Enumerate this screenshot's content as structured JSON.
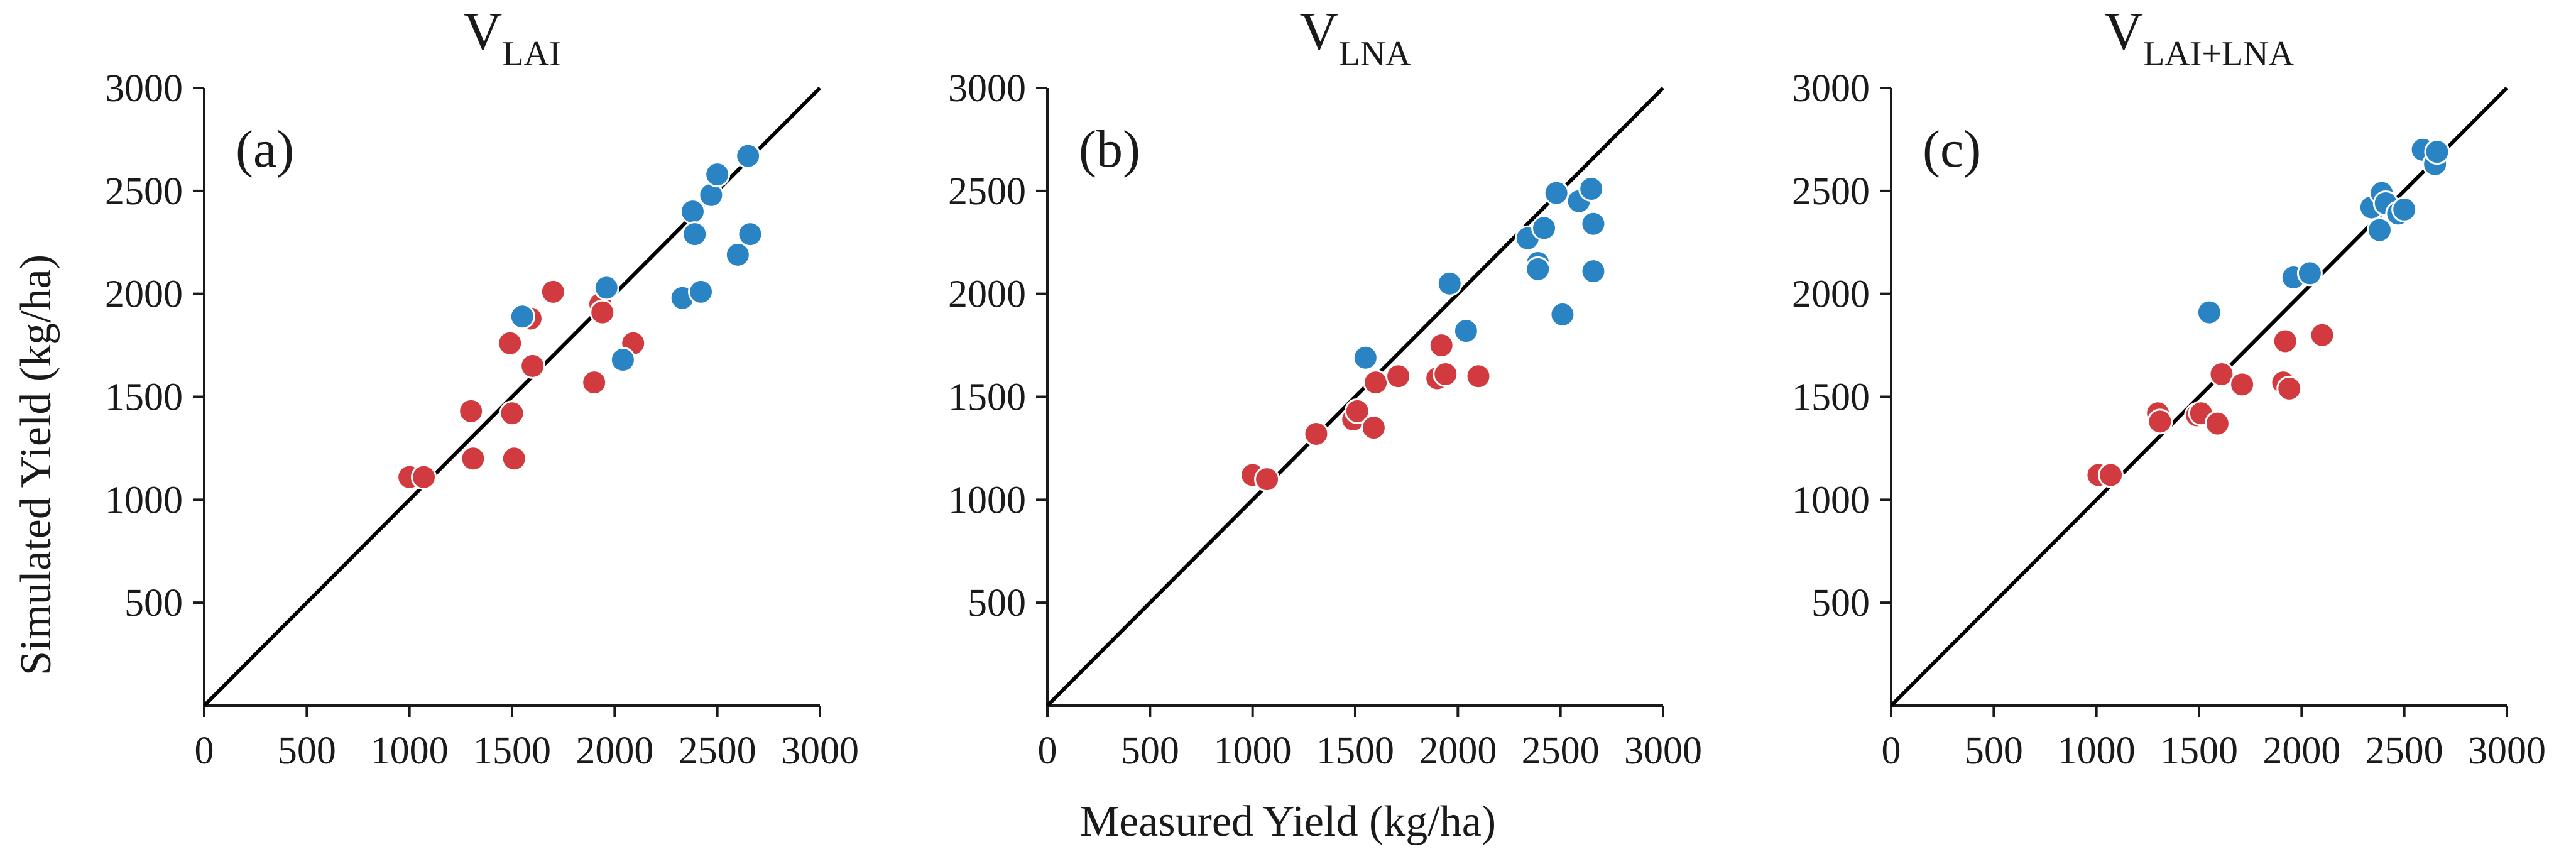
{
  "figure": {
    "xlabel": "Measured Yield (kg/ha)",
    "ylabel": "Simulated Yield (kg/ha)"
  },
  "colors": {
    "series_red": "#d13b40",
    "series_blue": "#2a84c4",
    "line": "#000000",
    "axis": "#1a1a1a"
  },
  "chart_data": [
    {
      "type": "scatter",
      "title_main": "V",
      "title_sub": "LAI",
      "panel_label": "(a)",
      "xlim": [
        0,
        3000
      ],
      "ylim": [
        0,
        3000
      ],
      "xticks": [
        0,
        500,
        1000,
        1500,
        2000,
        2500,
        3000
      ],
      "yticks": [
        500,
        1000,
        1500,
        2000,
        2500,
        3000
      ],
      "reference_line": "1:1",
      "series": [
        {
          "name": "red",
          "points": [
            [
              1000,
              1110
            ],
            [
              1070,
              1110
            ],
            [
              1300,
              1430
            ],
            [
              1310,
              1200
            ],
            [
              1490,
              1760
            ],
            [
              1500,
              1420
            ],
            [
              1510,
              1200
            ],
            [
              1590,
              1880
            ],
            [
              1600,
              1650
            ],
            [
              1700,
              2010
            ],
            [
              1900,
              1570
            ],
            [
              1930,
              1950
            ],
            [
              1940,
              1910
            ],
            [
              2090,
              1760
            ]
          ]
        },
        {
          "name": "blue",
          "points": [
            [
              1550,
              1890
            ],
            [
              1960,
              2030
            ],
            [
              2040,
              1680
            ],
            [
              2330,
              1980
            ],
            [
              2380,
              2400
            ],
            [
              2390,
              2290
            ],
            [
              2420,
              2010
            ],
            [
              2470,
              2480
            ],
            [
              2500,
              2580
            ],
            [
              2600,
              2190
            ],
            [
              2650,
              2670
            ],
            [
              2660,
              2290
            ]
          ]
        }
      ]
    },
    {
      "type": "scatter",
      "title_main": "V",
      "title_sub": "LNA",
      "panel_label": "(b)",
      "xlim": [
        0,
        3000
      ],
      "ylim": [
        0,
        3000
      ],
      "xticks": [
        0,
        500,
        1000,
        1500,
        2000,
        2500,
        3000
      ],
      "yticks": [
        500,
        1000,
        1500,
        2000,
        2500,
        3000
      ],
      "reference_line": "1:1",
      "series": [
        {
          "name": "red",
          "points": [
            [
              1000,
              1120
            ],
            [
              1070,
              1100
            ],
            [
              1310,
              1320
            ],
            [
              1490,
              1390
            ],
            [
              1510,
              1430
            ],
            [
              1590,
              1350
            ],
            [
              1600,
              1570
            ],
            [
              1710,
              1600
            ],
            [
              1900,
              1590
            ],
            [
              1920,
              1750
            ],
            [
              1940,
              1610
            ],
            [
              2100,
              1600
            ]
          ]
        },
        {
          "name": "blue",
          "points": [
            [
              1550,
              1690
            ],
            [
              1960,
              2050
            ],
            [
              2040,
              1820
            ],
            [
              2340,
              2270
            ],
            [
              2390,
              2150
            ],
            [
              2390,
              2120
            ],
            [
              2420,
              2320
            ],
            [
              2480,
              2490
            ],
            [
              2510,
              1900
            ],
            [
              2590,
              2450
            ],
            [
              2650,
              2510
            ],
            [
              2660,
              2340
            ],
            [
              2660,
              2110
            ]
          ]
        }
      ]
    },
    {
      "type": "scatter",
      "title_main": "V",
      "title_sub": "LAI+LNA",
      "panel_label": "(c)",
      "xlim": [
        0,
        3000
      ],
      "ylim": [
        0,
        3000
      ],
      "xticks": [
        0,
        500,
        1000,
        1500,
        2000,
        2500,
        3000
      ],
      "yticks": [
        500,
        1000,
        1500,
        2000,
        2500,
        3000
      ],
      "reference_line": "1:1",
      "series": [
        {
          "name": "red",
          "points": [
            [
              1010,
              1120
            ],
            [
              1070,
              1120
            ],
            [
              1300,
              1420
            ],
            [
              1310,
              1380
            ],
            [
              1490,
              1410
            ],
            [
              1510,
              1420
            ],
            [
              1590,
              1370
            ],
            [
              1610,
              1610
            ],
            [
              1710,
              1560
            ],
            [
              1910,
              1570
            ],
            [
              1920,
              1770
            ],
            [
              1940,
              1540
            ],
            [
              2100,
              1800
            ]
          ]
        },
        {
          "name": "blue",
          "points": [
            [
              1550,
              1910
            ],
            [
              1960,
              2080
            ],
            [
              2040,
              2100
            ],
            [
              2340,
              2420
            ],
            [
              2380,
              2310
            ],
            [
              2390,
              2490
            ],
            [
              2410,
              2440
            ],
            [
              2470,
              2390
            ],
            [
              2500,
              2410
            ],
            [
              2590,
              2700
            ],
            [
              2650,
              2630
            ],
            [
              2660,
              2690
            ]
          ]
        }
      ]
    }
  ]
}
